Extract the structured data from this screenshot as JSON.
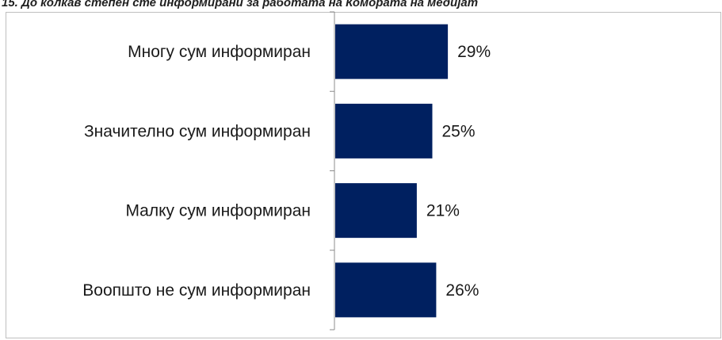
{
  "chart_data": {
    "type": "bar",
    "orientation": "horizontal",
    "title": "15. До колкав степен сте информирани за работата на Комората на медијат",
    "categories": [
      "Многу сум информиран",
      "Значително сум информиран",
      "Малку сум информиран",
      "Воопшто не сум информиран"
    ],
    "values": [
      29,
      25,
      21,
      26
    ],
    "value_labels": [
      "29%",
      "25%",
      "21%",
      "26%"
    ],
    "xlim": [
      0,
      100
    ],
    "unit": "%",
    "bar_color": "#002060",
    "grid": false,
    "legend": "none"
  }
}
